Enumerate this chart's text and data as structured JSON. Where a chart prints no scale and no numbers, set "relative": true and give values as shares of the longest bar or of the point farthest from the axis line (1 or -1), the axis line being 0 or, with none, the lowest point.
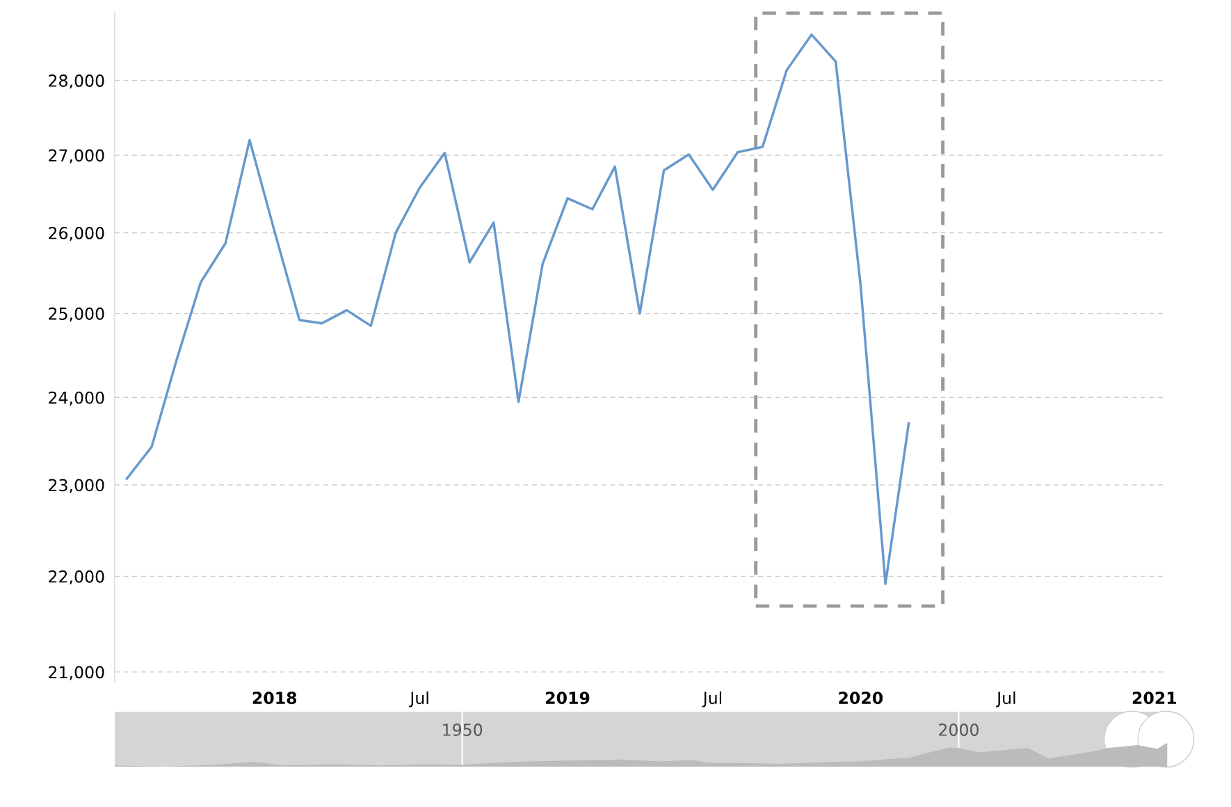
{
  "chart_data": [
    {
      "type": "line",
      "log": "y",
      "grid": "y",
      "line_style": "solid",
      "marker": "none",
      "x": [
        "2017-07",
        "2017-08",
        "2017-09",
        "2017-10",
        "2017-11",
        "2017-12",
        "2018-01",
        "2018-02",
        "2018-03",
        "2018-04",
        "2018-05",
        "2018-06",
        "2018-07",
        "2018-08",
        "2018-09",
        "2018-10",
        "2018-11",
        "2018-12",
        "2019-01",
        "2019-02",
        "2019-03",
        "2019-04",
        "2019-05",
        "2019-06",
        "2019-07",
        "2019-08",
        "2019-09",
        "2019-10",
        "2019-11",
        "2019-12",
        "2020-01",
        "2020-02",
        "2020-03"
      ],
      "series": [
        {
          "color": "#6699cc",
          "values": [
            23070,
            23430,
            24440,
            25380,
            25870,
            27200,
            26020,
            24920,
            24880,
            25040,
            24850,
            26000,
            26580,
            27030,
            25630,
            26130,
            23950,
            25610,
            26440,
            26300,
            26850,
            25000,
            26800,
            27010,
            26550,
            27040,
            27110,
            28140,
            28630,
            28260,
            25350,
            21920,
            23700
          ]
        }
      ],
      "xlim": [
        "2017-06-16",
        "2021-01-15"
      ],
      "xticks": [
        {
          "value": "2018-01-01",
          "label": "2018"
        },
        {
          "value": "2018-07-01",
          "label": "Jul"
        },
        {
          "value": "2019-01-01",
          "label": "2019"
        },
        {
          "value": "2019-07-01",
          "label": "Jul"
        },
        {
          "value": "2020-01-01",
          "label": "2020"
        },
        {
          "value": "2020-07-01",
          "label": "Jul"
        },
        {
          "value": "2021-01-01",
          "label": "2021"
        }
      ],
      "ylim": [
        20900,
        28950
      ],
      "yticks": [
        {
          "value": 21000,
          "label": "21,000"
        },
        {
          "value": 22000,
          "label": "22,000"
        },
        {
          "value": 23000,
          "label": "23,000"
        },
        {
          "value": 24000,
          "label": "24,000"
        },
        {
          "value": 25000,
          "label": "25,000"
        },
        {
          "value": 26000,
          "label": "26,000"
        },
        {
          "value": 27000,
          "label": "27,000"
        },
        {
          "value": 28000,
          "label": "28,000"
        }
      ]
    },
    {
      "type": "area",
      "relative": true,
      "x": [
        1915,
        1920,
        1925,
        1929,
        1932,
        1937,
        1942,
        1946,
        1950,
        1955,
        1960,
        1966,
        1970,
        1973,
        1975,
        1980,
        1982,
        1987,
        1990,
        1995,
        1999,
        2000,
        2002,
        2007,
        2009,
        2013,
        2015,
        2018,
        2020,
        2021
      ],
      "series": [
        {
          "color": "#bbbbbb",
          "values": [
            0.05,
            0.0,
            0.08,
            0.2,
            0.05,
            0.1,
            0.05,
            0.1,
            0.08,
            0.2,
            0.25,
            0.3,
            0.22,
            0.28,
            0.16,
            0.14,
            0.12,
            0.2,
            0.22,
            0.38,
            0.8,
            0.78,
            0.6,
            0.78,
            0.35,
            0.6,
            0.78,
            0.9,
            0.75,
            1.0
          ]
        }
      ],
      "xlim": [
        1915,
        2021.4
      ],
      "xticks": [
        1950,
        2000
      ]
    }
  ]
}
